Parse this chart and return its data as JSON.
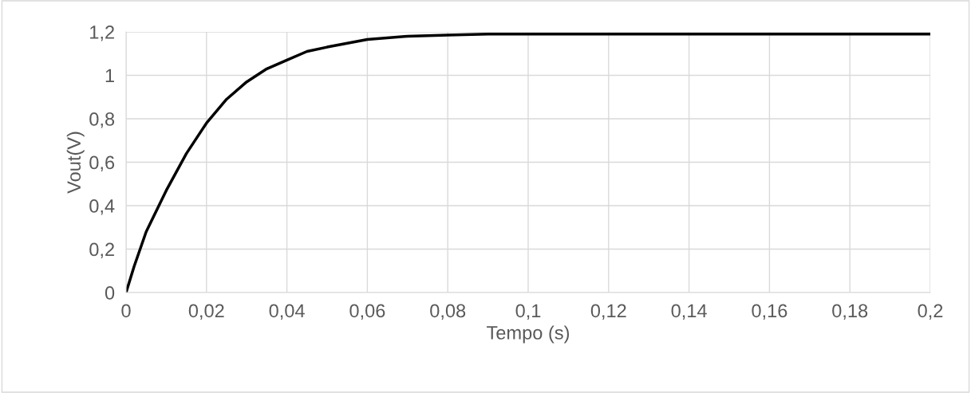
{
  "chart_data": {
    "type": "line",
    "xlabel": "Tempo (s)",
    "ylabel": "Vout(V)",
    "x": [
      0,
      0.002,
      0.005,
      0.01,
      0.015,
      0.02,
      0.025,
      0.03,
      0.035,
      0.04,
      0.045,
      0.05,
      0.06,
      0.07,
      0.08,
      0.09,
      0.1,
      0.12,
      0.15,
      0.2
    ],
    "series": [
      {
        "color": "#000000",
        "values": [
          0,
          0.12,
          0.28,
          0.47,
          0.64,
          0.78,
          0.89,
          0.97,
          1.03,
          1.07,
          1.11,
          1.13,
          1.165,
          1.18,
          1.185,
          1.19,
          1.19,
          1.19,
          1.19,
          1.19
        ]
      }
    ],
    "xlim": [
      0,
      0.2
    ],
    "ylim": [
      0,
      1.2
    ],
    "xticks": [
      0,
      {
        "value": 0.02,
        "label": "0,02"
      },
      {
        "value": 0.04,
        "label": "0,04"
      },
      {
        "value": 0.06,
        "label": "0,06"
      },
      {
        "value": 0.08,
        "label": "0,08"
      },
      {
        "value": 0.1,
        "label": "0,1"
      },
      {
        "value": 0.12,
        "label": "0,12"
      },
      {
        "value": 0.14,
        "label": "0,14"
      },
      {
        "value": 0.16,
        "label": "0,16"
      },
      {
        "value": 0.18,
        "label": "0,18"
      },
      {
        "value": 0.2,
        "label": "0,2"
      }
    ],
    "yticks": [
      0,
      {
        "value": 0.2,
        "label": "0,2"
      },
      {
        "value": 0.4,
        "label": "0,4"
      },
      {
        "value": 0.6,
        "label": "0,6"
      },
      {
        "value": 0.8,
        "label": "0,8"
      },
      1,
      {
        "value": 1.2,
        "label": "1,2"
      }
    ],
    "grid": true,
    "marker": "none",
    "line_style": "solid",
    "legend": false
  }
}
